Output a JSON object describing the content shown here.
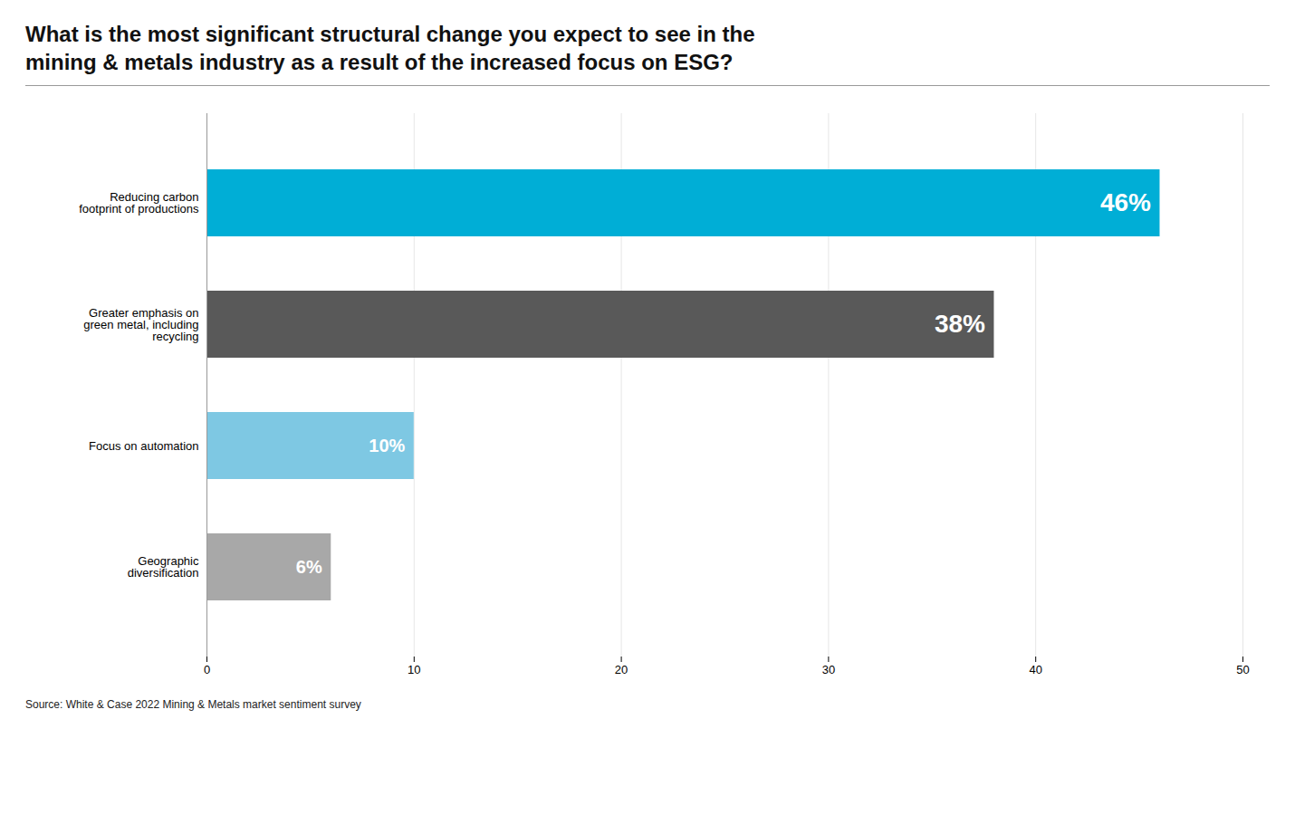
{
  "chart_data": {
    "type": "bar",
    "orientation": "horizontal",
    "title": "What is the most significant structural change you expect to see in the\nmining & metals industry as a result of the increased focus on ESG?",
    "categories": [
      "Geographic\ndiversification",
      "Focus on automation",
      "Greater emphasis on\ngreen metal, including\nrecycling",
      "Reducing carbon\nfootprint of productions"
    ],
    "values": [
      6,
      10,
      38,
      46
    ],
    "value_labels": [
      "6%",
      "10%",
      "38%",
      "46%"
    ],
    "data_labels": true,
    "colors": [
      "#a8a8a8",
      "#7ec8e3",
      "#595959",
      "#00aed6"
    ],
    "xlim": [
      0,
      50
    ],
    "xticks": [
      0,
      10,
      20,
      30,
      40,
      50
    ],
    "grid": true,
    "annotations": [
      "Source: White & Case 2022 Mining & Metals market sentiment survey"
    ]
  }
}
